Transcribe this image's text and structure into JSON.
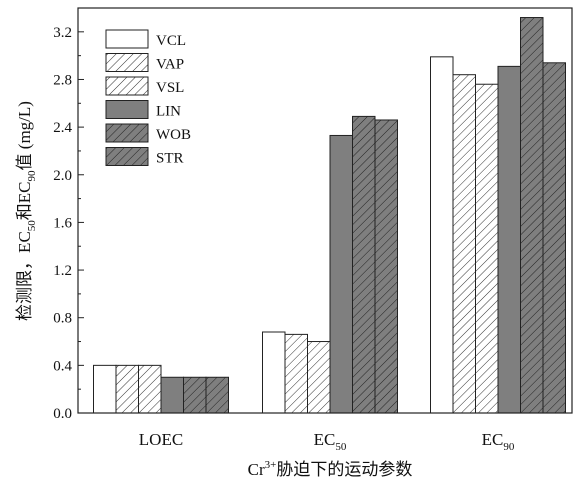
{
  "chart_data": {
    "type": "bar",
    "xlabel": {
      "prefix": "Cr",
      "sup": "3+",
      "suffix": "胁迫下的运动参数"
    },
    "ylabel": {
      "parts": [
        {
          "t": "检测限，EC"
        },
        {
          "t": "50",
          "sub": true
        },
        {
          "t": "和EC"
        },
        {
          "t": "90",
          "sub": true
        },
        {
          "t": "值 (mg/L)"
        }
      ]
    },
    "categories": [
      {
        "main": "LOEC",
        "sub": ""
      },
      {
        "main": "EC",
        "sub": "50"
      },
      {
        "main": "EC",
        "sub": "90"
      }
    ],
    "ylim": [
      0,
      3.4
    ],
    "yticks": [
      "0.0",
      "0.4",
      "0.8",
      "1.2",
      "1.6",
      "2.0",
      "2.4",
      "2.8",
      "3.2"
    ],
    "grid": false,
    "legend_position": "top-left",
    "series": [
      {
        "name": "VCL",
        "values": [
          0.4,
          0.68,
          2.99
        ],
        "fill": "#ffffff",
        "hatch": false
      },
      {
        "name": "VAP",
        "values": [
          0.4,
          0.66,
          2.84
        ],
        "fill": "#ffffff",
        "hatch": true
      },
      {
        "name": "VSL",
        "values": [
          0.4,
          0.6,
          2.76
        ],
        "fill": "#ffffff",
        "hatch": true
      },
      {
        "name": "LIN",
        "values": [
          0.3,
          2.33,
          2.91
        ],
        "fill": "#7f7f7f",
        "hatch": false
      },
      {
        "name": "WOB",
        "values": [
          0.3,
          2.49,
          3.32
        ],
        "fill": "#7f7f7f",
        "hatch": true
      },
      {
        "name": "STR",
        "values": [
          0.3,
          2.46,
          2.94
        ],
        "fill": "#7f7f7f",
        "hatch": true
      }
    ]
  }
}
